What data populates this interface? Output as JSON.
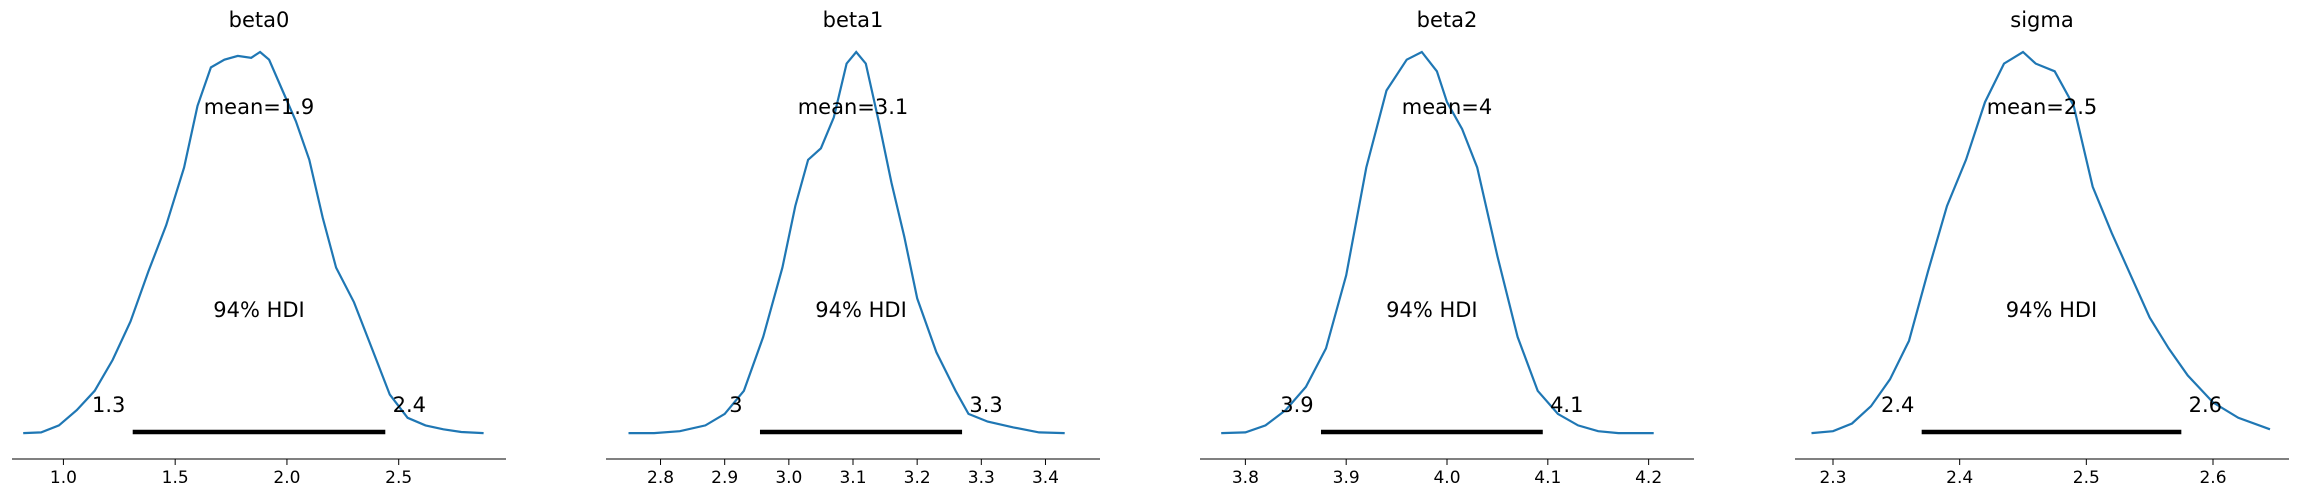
{
  "colors": {
    "line": "#1f77b4",
    "hdi": "#000000"
  },
  "chart_data": [
    {
      "type": "line",
      "title": "beta0",
      "mean_label": "mean=1.9",
      "hdi_label": "94% HDI",
      "hdi": [
        1.31,
        2.44
      ],
      "hdi_low_label": "1.3",
      "hdi_high_label": "2.4",
      "xlim": [
        0.77,
        2.98
      ],
      "xticks": [
        1.0,
        1.5,
        2.0,
        2.5
      ],
      "xtick_labels": [
        "1.0",
        "1.5",
        "2.0",
        "2.5"
      ],
      "density": {
        "x": [
          0.82,
          0.9,
          0.98,
          1.06,
          1.14,
          1.22,
          1.3,
          1.38,
          1.46,
          1.54,
          1.6,
          1.66,
          1.72,
          1.78,
          1.84,
          1.88,
          1.92,
          1.98,
          2.04,
          2.1,
          2.16,
          2.22,
          2.3,
          2.38,
          2.46,
          2.54,
          2.62,
          2.7,
          2.78,
          2.88
        ],
        "y": [
          0.01,
          0.012,
          0.03,
          0.07,
          0.12,
          0.2,
          0.3,
          0.43,
          0.55,
          0.7,
          0.86,
          0.96,
          0.98,
          0.99,
          0.985,
          1.0,
          0.98,
          0.9,
          0.82,
          0.72,
          0.57,
          0.44,
          0.35,
          0.23,
          0.11,
          0.05,
          0.03,
          0.02,
          0.013,
          0.01
        ]
      }
    },
    {
      "type": "line",
      "title": "beta1",
      "mean_label": "mean=3.1",
      "hdi_label": "94% HDI",
      "hdi": [
        2.955,
        3.27
      ],
      "hdi_low_label": "3",
      "hdi_high_label": "3.3",
      "xlim": [
        2.715,
        3.485
      ],
      "xticks": [
        2.8,
        2.9,
        3.0,
        3.1,
        3.2,
        3.3,
        3.4
      ],
      "xtick_labels": [
        "2.8",
        "2.9",
        "3.0",
        "3.1",
        "3.2",
        "3.3",
        "3.4"
      ],
      "density": {
        "x": [
          2.75,
          2.79,
          2.83,
          2.87,
          2.9,
          2.93,
          2.96,
          2.99,
          3.01,
          3.03,
          3.05,
          3.07,
          3.09,
          3.105,
          3.12,
          3.14,
          3.16,
          3.18,
          3.2,
          3.23,
          3.26,
          3.28,
          3.31,
          3.35,
          3.39,
          3.43
        ],
        "y": [
          0.01,
          0.01,
          0.015,
          0.03,
          0.06,
          0.12,
          0.26,
          0.44,
          0.6,
          0.72,
          0.75,
          0.83,
          0.97,
          1.0,
          0.97,
          0.82,
          0.66,
          0.52,
          0.36,
          0.22,
          0.12,
          0.06,
          0.04,
          0.025,
          0.012,
          0.01
        ]
      }
    },
    {
      "type": "line",
      "title": "beta2",
      "mean_label": "mean=4",
      "hdi_label": "94% HDI",
      "hdi": [
        3.875,
        4.095
      ],
      "hdi_low_label": "3.9",
      "hdi_high_label": "4.1",
      "xlim": [
        3.755,
        4.245
      ],
      "xticks": [
        3.8,
        3.9,
        4.0,
        4.1,
        4.2
      ],
      "xtick_labels": [
        "3.8",
        "3.9",
        "4.0",
        "4.1",
        "4.2"
      ],
      "density": {
        "x": [
          3.776,
          3.8,
          3.82,
          3.84,
          3.86,
          3.88,
          3.9,
          3.92,
          3.94,
          3.96,
          3.975,
          3.99,
          4.0,
          4.015,
          4.03,
          4.05,
          4.07,
          4.09,
          4.11,
          4.13,
          4.15,
          4.17,
          4.19,
          4.205
        ],
        "y": [
          0.01,
          0.012,
          0.03,
          0.07,
          0.13,
          0.23,
          0.42,
          0.7,
          0.9,
          0.98,
          1.0,
          0.95,
          0.87,
          0.8,
          0.7,
          0.47,
          0.26,
          0.12,
          0.06,
          0.03,
          0.015,
          0.01,
          0.01,
          0.01
        ]
      }
    },
    {
      "type": "line",
      "title": "sigma",
      "mean_label": "mean=2.5",
      "hdi_label": "94% HDI",
      "hdi": [
        2.37,
        2.575
      ],
      "hdi_low_label": "2.4",
      "hdi_high_label": "2.6",
      "xlim": [
        2.27,
        2.66
      ],
      "xticks": [
        2.3,
        2.4,
        2.5,
        2.6
      ],
      "xtick_labels": [
        "2.3",
        "2.4",
        "2.5",
        "2.6"
      ],
      "density": {
        "x": [
          2.283,
          2.3,
          2.315,
          2.33,
          2.345,
          2.36,
          2.375,
          2.39,
          2.405,
          2.42,
          2.435,
          2.45,
          2.46,
          2.475,
          2.49,
          2.505,
          2.52,
          2.535,
          2.55,
          2.565,
          2.58,
          2.6,
          2.62,
          2.645
        ],
        "y": [
          0.01,
          0.015,
          0.035,
          0.08,
          0.15,
          0.25,
          0.43,
          0.6,
          0.72,
          0.87,
          0.97,
          1.0,
          0.97,
          0.95,
          0.86,
          0.65,
          0.53,
          0.42,
          0.31,
          0.23,
          0.16,
          0.09,
          0.05,
          0.02
        ]
      }
    }
  ]
}
